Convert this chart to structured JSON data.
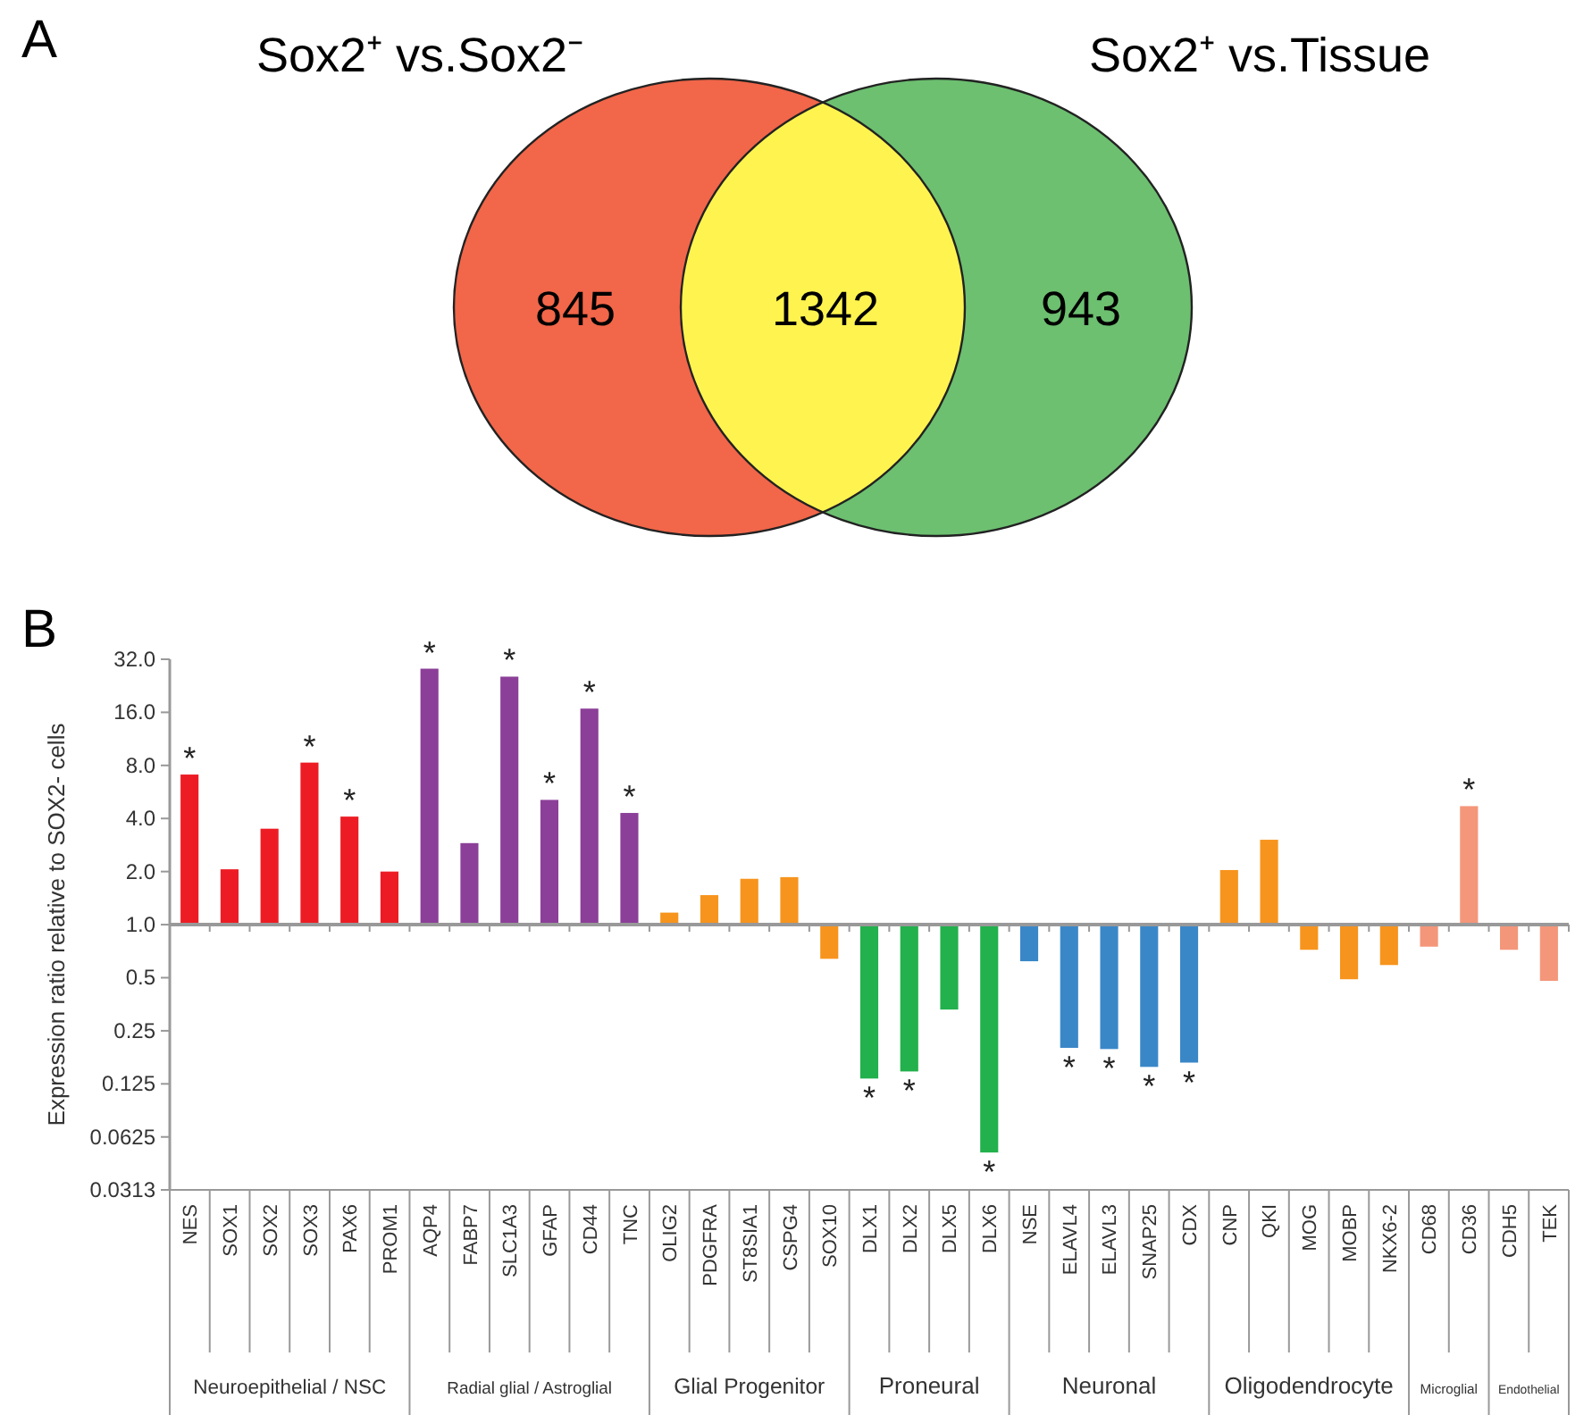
{
  "chart_data": [
    {
      "type": "other",
      "categories": [
        "Sox2⁺ vs.Sox2⁻",
        null,
        "Sox2⁺ vs.Tissue"
      ],
      "values": [
        845,
        1342,
        943
      ],
      "colors": [
        "#f26649",
        "#fff44f",
        "#6cc070"
      ],
      "data_labels": true,
      "annotations": [
        "A"
      ]
    },
    {
      "type": "bar",
      "ylabel": "Expression ratio relative to SOX2- cells",
      "log": true,
      "categories": [
        "NES",
        "SOX1",
        "SOX2",
        "SOX3",
        "PAX6",
        "PROM1",
        "AQP4",
        "FABP7",
        "SLC1A3",
        "GFAP",
        "CD44",
        "TNC",
        "OLIG2",
        "PDGFRA",
        "ST8SIA1",
        "CSPG4",
        "SOX10",
        "DLX1",
        "DLX2",
        "DLX5",
        "DLX6",
        "NSE",
        "ELAVL4",
        "ELAVL3",
        "SNAP25",
        "CDX",
        "CNP",
        "QKI",
        "MOG",
        "MOBP",
        "NKX6-2",
        "CD68",
        "CD36",
        "CDH5",
        "TEK"
      ],
      "base": [
        1,
        1,
        1,
        1,
        1,
        1,
        1,
        1,
        1,
        1,
        1,
        1,
        1,
        1,
        1,
        1,
        1,
        1,
        1,
        1,
        1,
        1,
        1,
        1,
        1,
        1,
        1,
        1,
        1,
        1,
        1,
        1,
        1,
        1,
        1
      ],
      "values": [
        6.1,
        1.06,
        2.5,
        7.3,
        3.1,
        1.0,
        27.3,
        1.9,
        24.5,
        4.1,
        15.8,
        3.3,
        0.17,
        0.47,
        0.82,
        0.86,
        -0.36,
        -0.866,
        -0.853,
        -0.67,
        -0.949,
        -0.38,
        -0.8,
        -0.803,
        -0.844,
        -0.835,
        1.04,
        2.03,
        -0.28,
        -0.51,
        -0.41,
        -0.25,
        3.7,
        -0.28,
        -0.52
      ],
      "colors": [
        "#ed1c24",
        "#ed1c24",
        "#ed1c24",
        "#ed1c24",
        "#ed1c24",
        "#ed1c24",
        "#8b3f98",
        "#8b3f98",
        "#8b3f98",
        "#8b3f98",
        "#8b3f98",
        "#8b3f98",
        "#f7941d",
        "#f7941d",
        "#f7941d",
        "#f7941d",
        "#f7941d",
        "#22b14c",
        "#22b14c",
        "#22b14c",
        "#22b14c",
        "#3a87c8",
        "#3a87c8",
        "#3a87c8",
        "#3a87c8",
        "#3a87c8",
        "#f7941d",
        "#f7941d",
        "#f7941d",
        "#f7941d",
        "#f7941d",
        "#f4967a",
        "#f4967a",
        "#f4967a",
        "#f4967a"
      ],
      "ylim": [
        0.0313,
        32
      ],
      "yticks": [
        {
          "value": 32,
          "label": "32.0"
        },
        {
          "value": 16,
          "label": "16.0"
        },
        {
          "value": 8,
          "label": "8.0"
        },
        {
          "value": 4,
          "label": "4.0"
        },
        {
          "value": 2,
          "label": "2.0"
        },
        {
          "value": 1,
          "label": "1.0"
        },
        0.5,
        0.25,
        0.125,
        0.0625,
        0.0313
      ],
      "annotations": [
        "B",
        {
          "text": "*",
          "x": "NES",
          "y": 7.1
        },
        {
          "text": "*",
          "x": "SOX3",
          "y": 8.3
        },
        {
          "text": "*",
          "x": "PAX6",
          "y": 4.1
        },
        {
          "text": "*",
          "x": "AQP4",
          "y": 28.3
        },
        {
          "text": "*",
          "x": "SLC1A3",
          "y": 25.5
        },
        {
          "text": "*",
          "x": "GFAP",
          "y": 5.1
        },
        {
          "text": "*",
          "x": "CD44",
          "y": 16.8
        },
        {
          "text": "*",
          "x": "TNC",
          "y": 4.3
        },
        {
          "text": "*",
          "x": "DLX1",
          "y": 0.134
        },
        {
          "text": "*",
          "x": "DLX2",
          "y": 0.147
        },
        {
          "text": "*",
          "x": "DLX6",
          "y": 0.051
        },
        {
          "text": "*",
          "x": "ELAVL4",
          "y": 0.2
        },
        {
          "text": "*",
          "x": "ELAVL3",
          "y": 0.197
        },
        {
          "text": "*",
          "x": "SNAP25",
          "y": 0.156
        },
        {
          "text": "*",
          "x": "CDX",
          "y": 0.165
        },
        {
          "text": "*",
          "x": "CD36",
          "y": 4.7
        },
        "Neuroepithelial / NSC",
        "Radial glial / Astroglial",
        "Glial Progenitor",
        "Proneural",
        "Neuronal",
        "Oligodendrocyte",
        "Microglial",
        "Endothelial"
      ]
    }
  ]
}
